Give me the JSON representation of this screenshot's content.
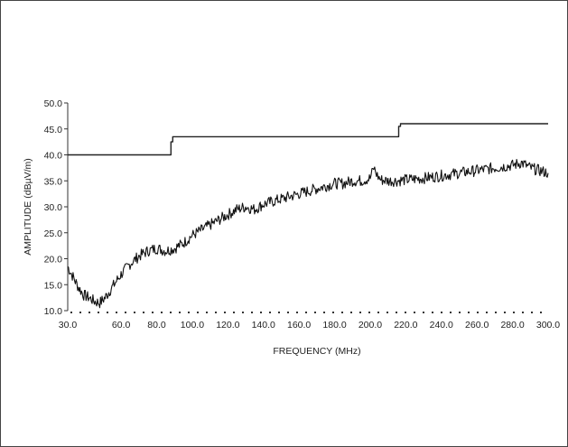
{
  "chart_data": {
    "type": "line",
    "title": "",
    "xlabel": "FREQUENCY (MHz)",
    "ylabel": "AMPLITUDE (dBµV/m)",
    "xlim": [
      30,
      300
    ],
    "ylim": [
      10,
      50
    ],
    "x_ticks": [
      30,
      60,
      80,
      100,
      120,
      140,
      160,
      180,
      200,
      220,
      240,
      260,
      280,
      300
    ],
    "x_tick_labels": [
      "30.0",
      "60.0",
      "80.0",
      "100.0",
      "120.0",
      "140.0",
      "160.0",
      "180.0",
      "200.0",
      "220.0",
      "240.0",
      "260.0",
      "280.0",
      "300.0"
    ],
    "y_ticks": [
      10,
      15,
      20,
      25,
      30,
      35,
      40,
      45,
      50
    ],
    "y_tick_labels": [
      "10.0",
      "15.0",
      "20.0",
      "25.0",
      "30.0",
      "35.0",
      "40.0",
      "45.0",
      "50.0"
    ],
    "grid": false,
    "series": [
      {
        "role": "limit",
        "color": "#222222",
        "x": [
          30,
          88,
          88,
          89,
          89,
          216,
          216,
          217,
          217,
          300
        ],
        "y": [
          40,
          40,
          42.5,
          42.5,
          43.5,
          43.5,
          45.5,
          45.5,
          46,
          46
        ]
      },
      {
        "role": "measurement",
        "color": "#111111",
        "x": [
          30,
          33,
          36,
          39,
          42,
          45,
          48,
          51,
          54,
          57,
          60,
          65,
          70,
          75,
          80,
          85,
          90,
          95,
          100,
          105,
          110,
          115,
          120,
          125,
          130,
          135,
          140,
          145,
          150,
          155,
          160,
          165,
          170,
          175,
          180,
          185,
          190,
          195,
          200,
          202,
          204,
          206,
          210,
          215,
          220,
          230,
          240,
          250,
          260,
          270,
          280,
          285,
          290,
          295,
          300
        ],
        "y": [
          18.5,
          16.5,
          14.5,
          13,
          12.5,
          11.8,
          11.5,
          12.5,
          14,
          15.5,
          17,
          19,
          20.5,
          21.5,
          22,
          21.5,
          22,
          23,
          24.5,
          25.5,
          26.5,
          27.5,
          28.5,
          29.5,
          30,
          29.5,
          30.5,
          31,
          31.5,
          32,
          32.5,
          33,
          33.5,
          34,
          34.5,
          34.5,
          35,
          35,
          35.5,
          37.5,
          36,
          35.2,
          35,
          35,
          35.2,
          35.5,
          36,
          36.5,
          37,
          37.5,
          38,
          38.5,
          37.5,
          37,
          36.5
        ]
      }
    ]
  }
}
